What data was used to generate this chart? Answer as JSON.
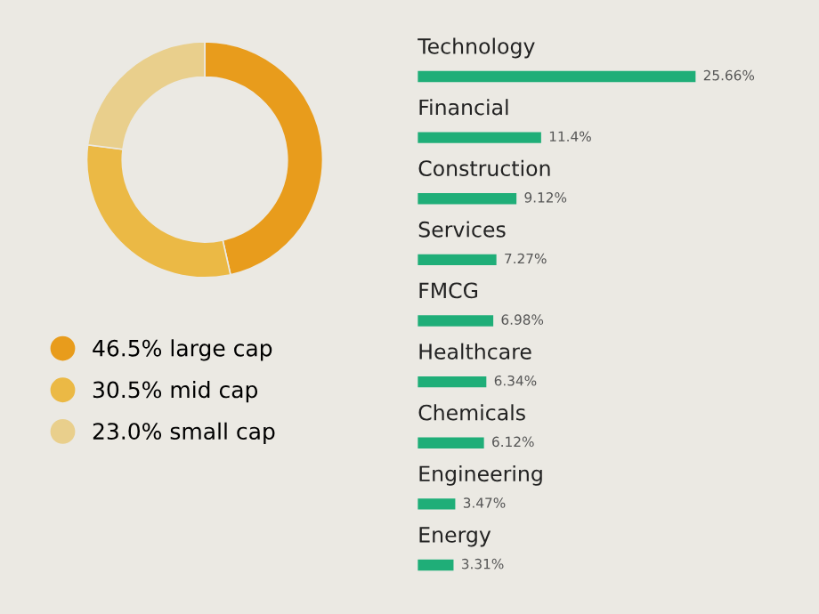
{
  "chart_data": [
    {
      "type": "donut",
      "categories": [
        "large cap",
        "mid cap",
        "small cap"
      ],
      "values": [
        46.5,
        30.5,
        23.0
      ],
      "value_labels": [
        "46.5%",
        "30.5%",
        "23.0%"
      ],
      "colors": [
        "#e89c1c",
        "#ebb945",
        "#e9cf8c"
      ],
      "legend": "bottom"
    },
    {
      "type": "bar",
      "orientation": "horizontal",
      "categories": [
        "Technology",
        "Financial",
        "Construction",
        "Services",
        "FMCG",
        "Healthcare",
        "Chemicals",
        "Engineering",
        "Energy"
      ],
      "values": [
        25.66,
        11.4,
        9.12,
        7.27,
        6.98,
        6.34,
        6.12,
        3.47,
        3.31
      ],
      "value_labels": [
        "25.66%",
        "11.4%",
        "9.12%",
        "7.27%",
        "6.98%",
        "6.34%",
        "6.12%",
        "3.47%",
        "3.31%"
      ],
      "color": "#1fae78"
    }
  ]
}
